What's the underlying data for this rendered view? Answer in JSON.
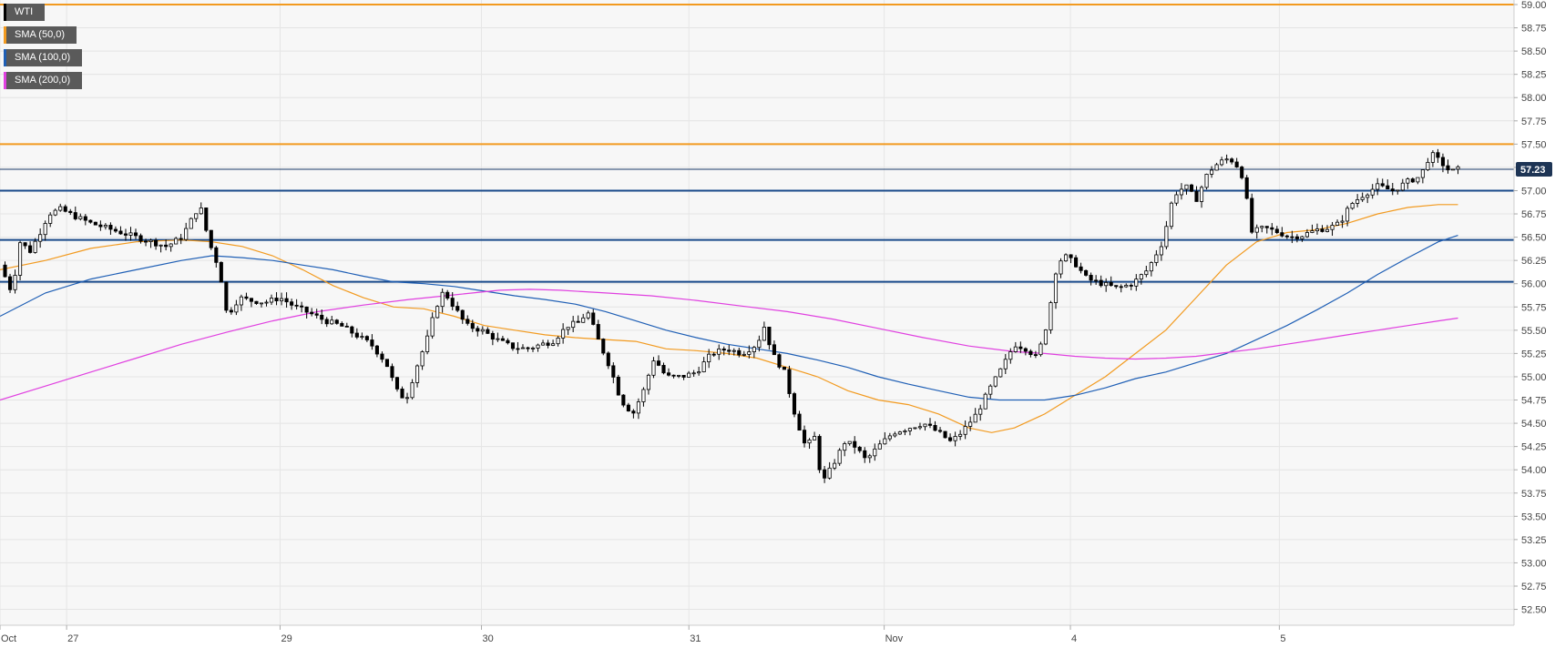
{
  "chart_data": {
    "type": "candlestick",
    "symbol": "WTI",
    "legend": [
      {
        "label": "WTI",
        "color": "#000000"
      },
      {
        "label": "SMA (50,0)",
        "color": "#f29a1f"
      },
      {
        "label": "SMA (100,0)",
        "color": "#1f5fb5"
      },
      {
        "label": "SMA (200,0)",
        "color": "#e040e0"
      }
    ],
    "last_price": "57.23",
    "last_price_value": 57.23,
    "ylim": [
      52.3,
      59.0
    ],
    "y_ticks": [
      "59.00",
      "58.75",
      "58.50",
      "58.25",
      "58.00",
      "57.75",
      "57.50",
      "57.25",
      "57.00",
      "56.75",
      "56.50",
      "56.25",
      "56.00",
      "55.75",
      "55.50",
      "55.25",
      "55.00",
      "54.75",
      "54.50",
      "54.25",
      "54.00",
      "53.75",
      "53.50",
      "53.25",
      "53.00",
      "52.75",
      "52.50"
    ],
    "x_labels": [
      "Oct",
      "27",
      "29",
      "30",
      "31",
      "Nov",
      "4",
      "5"
    ],
    "x_range": [
      0,
      100
    ],
    "x_label_positions": [
      0,
      4.4,
      18.5,
      31.8,
      45.5,
      58.4,
      70.7,
      84.5
    ],
    "horizontal_levels": [
      {
        "value": 59.0,
        "color": "#f29a1f"
      },
      {
        "value": 57.5,
        "color": "#f29a1f"
      },
      {
        "value": 57.0,
        "color": "#1a4a8a"
      },
      {
        "value": 56.47,
        "color": "#1a4a8a"
      },
      {
        "value": 56.02,
        "color": "#1a4a8a"
      }
    ],
    "price_path": [
      [
        0,
        56.2
      ],
      [
        0.8,
        55.9
      ],
      [
        1.3,
        56.45
      ],
      [
        2,
        56.35
      ],
      [
        2.8,
        56.6
      ],
      [
        3.2,
        56.75
      ],
      [
        4,
        56.8
      ],
      [
        5,
        56.72
      ],
      [
        6,
        56.65
      ],
      [
        7,
        56.6
      ],
      [
        8,
        56.55
      ],
      [
        9,
        56.5
      ],
      [
        10,
        56.45
      ],
      [
        11,
        56.4
      ],
      [
        12,
        56.5
      ],
      [
        13.2,
        56.85
      ],
      [
        13.8,
        56.45
      ],
      [
        14.5,
        56.15
      ],
      [
        15,
        55.65
      ],
      [
        15.8,
        55.85
      ],
      [
        16.5,
        55.82
      ],
      [
        17.5,
        55.8
      ],
      [
        18.5,
        55.85
      ],
      [
        19.5,
        55.75
      ],
      [
        20.5,
        55.68
      ],
      [
        21.5,
        55.6
      ],
      [
        22.5,
        55.55
      ],
      [
        23.5,
        55.45
      ],
      [
        24.5,
        55.35
      ],
      [
        25.5,
        55.15
      ],
      [
        26.2,
        54.85
      ],
      [
        26.8,
        54.75
      ],
      [
        27.5,
        55.1
      ],
      [
        28.2,
        55.4
      ],
      [
        28.8,
        55.75
      ],
      [
        29.3,
        55.92
      ],
      [
        30,
        55.75
      ],
      [
        30.8,
        55.55
      ],
      [
        31.8,
        55.5
      ],
      [
        32.8,
        55.4
      ],
      [
        33.8,
        55.32
      ],
      [
        34.8,
        55.3
      ],
      [
        35.8,
        55.35
      ],
      [
        36.5,
        55.38
      ],
      [
        37.5,
        55.55
      ],
      [
        38.2,
        55.58
      ],
      [
        38.8,
        55.7
      ],
      [
        39.5,
        55.4
      ],
      [
        40.3,
        55.1
      ],
      [
        41,
        54.75
      ],
      [
        41.8,
        54.6
      ],
      [
        42.5,
        54.85
      ],
      [
        43.2,
        55.2
      ],
      [
        44,
        55.0
      ],
      [
        45,
        55.0
      ],
      [
        46,
        55.05
      ],
      [
        47,
        55.25
      ],
      [
        48,
        55.3
      ],
      [
        49,
        55.25
      ],
      [
        50,
        55.35
      ],
      [
        50.5,
        55.55
      ],
      [
        51,
        55.25
      ],
      [
        51.8,
        55.05
      ],
      [
        52.5,
        54.6
      ],
      [
        53.2,
        54.25
      ],
      [
        53.8,
        54.35
      ],
      [
        54.3,
        53.85
      ],
      [
        55,
        54.05
      ],
      [
        55.8,
        54.3
      ],
      [
        56.5,
        54.25
      ],
      [
        57.2,
        54.1
      ],
      [
        58,
        54.25
      ],
      [
        59,
        54.4
      ],
      [
        60,
        54.45
      ],
      [
        61,
        54.5
      ],
      [
        62,
        54.4
      ],
      [
        62.8,
        54.3
      ],
      [
        63.5,
        54.4
      ],
      [
        64.5,
        54.6
      ],
      [
        65.3,
        54.85
      ],
      [
        66.2,
        55.1
      ],
      [
        67,
        55.35
      ],
      [
        67.8,
        55.3
      ],
      [
        68.5,
        55.2
      ],
      [
        69.2,
        55.6
      ],
      [
        69.8,
        56.2
      ],
      [
        70.3,
        56.3
      ],
      [
        71,
        56.22
      ],
      [
        71.8,
        56.05
      ],
      [
        72.8,
        56.0
      ],
      [
        73.8,
        55.95
      ],
      [
        74.8,
        56.0
      ],
      [
        75.8,
        56.15
      ],
      [
        76.8,
        56.45
      ],
      [
        77.5,
        56.95
      ],
      [
        78.3,
        57.05
      ],
      [
        79,
        56.9
      ],
      [
        79.8,
        57.2
      ],
      [
        80.5,
        57.3
      ],
      [
        81.2,
        57.35
      ],
      [
        81.8,
        57.25
      ],
      [
        82.2,
        57.1
      ],
      [
        82.6,
        56.55
      ],
      [
        83.5,
        56.6
      ],
      [
        84.5,
        56.55
      ],
      [
        85.2,
        56.5
      ],
      [
        86,
        56.52
      ],
      [
        87,
        56.58
      ],
      [
        87.8,
        56.6
      ],
      [
        88.5,
        56.65
      ],
      [
        89.2,
        56.85
      ],
      [
        90,
        56.95
      ],
      [
        91,
        57.05
      ],
      [
        92,
        57.0
      ],
      [
        93,
        57.1
      ],
      [
        93.8,
        57.15
      ],
      [
        94.5,
        57.4
      ],
      [
        95.2,
        57.3
      ],
      [
        95.8,
        57.2
      ],
      [
        96.3,
        57.23
      ]
    ],
    "sma50": [
      [
        0,
        56.15
      ],
      [
        3,
        56.25
      ],
      [
        6,
        56.38
      ],
      [
        9,
        56.45
      ],
      [
        12,
        56.47
      ],
      [
        14,
        56.45
      ],
      [
        16,
        56.4
      ],
      [
        18,
        56.3
      ],
      [
        20,
        56.15
      ],
      [
        22,
        55.98
      ],
      [
        24,
        55.85
      ],
      [
        26,
        55.75
      ],
      [
        28,
        55.73
      ],
      [
        30,
        55.65
      ],
      [
        32,
        55.55
      ],
      [
        34,
        55.5
      ],
      [
        36,
        55.45
      ],
      [
        38,
        55.42
      ],
      [
        40,
        55.4
      ],
      [
        42,
        55.38
      ],
      [
        44,
        55.3
      ],
      [
        46,
        55.28
      ],
      [
        48,
        55.25
      ],
      [
        50,
        55.2
      ],
      [
        52,
        55.1
      ],
      [
        54,
        55.0
      ],
      [
        56,
        54.85
      ],
      [
        58,
        54.75
      ],
      [
        60,
        54.7
      ],
      [
        62,
        54.6
      ],
      [
        64,
        54.45
      ],
      [
        65.5,
        54.4
      ],
      [
        67,
        54.45
      ],
      [
        69,
        54.6
      ],
      [
        71,
        54.8
      ],
      [
        73,
        55.0
      ],
      [
        75,
        55.25
      ],
      [
        77,
        55.5
      ],
      [
        79,
        55.85
      ],
      [
        81,
        56.2
      ],
      [
        83,
        56.45
      ],
      [
        85,
        56.55
      ],
      [
        87,
        56.58
      ],
      [
        89,
        56.65
      ],
      [
        91,
        56.75
      ],
      [
        93,
        56.82
      ],
      [
        95,
        56.85
      ],
      [
        96.3,
        56.85
      ]
    ],
    "sma100": [
      [
        0,
        55.65
      ],
      [
        3,
        55.9
      ],
      [
        6,
        56.05
      ],
      [
        9,
        56.15
      ],
      [
        12,
        56.25
      ],
      [
        14,
        56.3
      ],
      [
        16,
        56.28
      ],
      [
        18,
        56.25
      ],
      [
        20,
        56.2
      ],
      [
        22,
        56.15
      ],
      [
        24,
        56.08
      ],
      [
        26,
        56.02
      ],
      [
        28,
        56.0
      ],
      [
        30,
        55.97
      ],
      [
        32,
        55.92
      ],
      [
        34,
        55.87
      ],
      [
        36,
        55.83
      ],
      [
        38,
        55.78
      ],
      [
        40,
        55.7
      ],
      [
        42,
        55.6
      ],
      [
        44,
        55.5
      ],
      [
        46,
        55.42
      ],
      [
        48,
        55.35
      ],
      [
        50,
        55.3
      ],
      [
        52,
        55.25
      ],
      [
        54,
        55.18
      ],
      [
        56,
        55.1
      ],
      [
        58,
        55.0
      ],
      [
        60,
        54.92
      ],
      [
        62,
        54.85
      ],
      [
        64,
        54.78
      ],
      [
        66,
        54.75
      ],
      [
        68,
        54.75
      ],
      [
        69,
        54.75
      ],
      [
        71,
        54.8
      ],
      [
        73,
        54.88
      ],
      [
        75,
        54.98
      ],
      [
        77,
        55.05
      ],
      [
        79,
        55.15
      ],
      [
        81,
        55.25
      ],
      [
        83,
        55.4
      ],
      [
        85,
        55.55
      ],
      [
        87,
        55.72
      ],
      [
        89,
        55.9
      ],
      [
        91,
        56.1
      ],
      [
        93,
        56.28
      ],
      [
        95,
        56.45
      ],
      [
        96.3,
        56.52
      ]
    ],
    "sma200": [
      [
        0,
        54.75
      ],
      [
        3,
        54.9
      ],
      [
        6,
        55.05
      ],
      [
        9,
        55.2
      ],
      [
        12,
        55.35
      ],
      [
        15,
        55.48
      ],
      [
        18,
        55.6
      ],
      [
        21,
        55.7
      ],
      [
        24,
        55.77
      ],
      [
        27,
        55.83
      ],
      [
        30,
        55.88
      ],
      [
        33,
        55.93
      ],
      [
        35,
        55.94
      ],
      [
        37,
        55.93
      ],
      [
        40,
        55.9
      ],
      [
        43,
        55.87
      ],
      [
        46,
        55.82
      ],
      [
        49,
        55.76
      ],
      [
        52,
        55.7
      ],
      [
        55,
        55.62
      ],
      [
        58,
        55.52
      ],
      [
        61,
        55.42
      ],
      [
        64,
        55.33
      ],
      [
        67,
        55.27
      ],
      [
        69,
        55.25
      ],
      [
        71,
        55.22
      ],
      [
        73,
        55.2
      ],
      [
        75,
        55.19
      ],
      [
        77,
        55.2
      ],
      [
        79,
        55.22
      ],
      [
        81,
        55.26
      ],
      [
        83,
        55.3
      ],
      [
        85,
        55.35
      ],
      [
        87,
        55.4
      ],
      [
        89,
        55.45
      ],
      [
        91,
        55.5
      ],
      [
        93,
        55.55
      ],
      [
        95,
        55.6
      ],
      [
        96.3,
        55.63
      ]
    ]
  }
}
